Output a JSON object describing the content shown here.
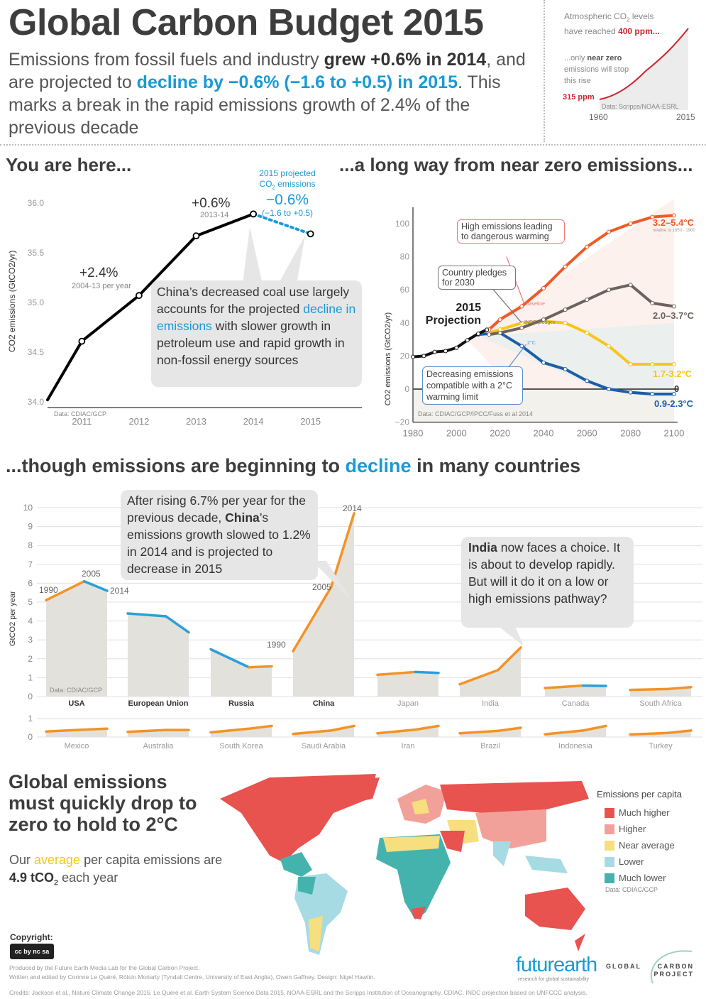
{
  "header": {
    "title": "Global Carbon Budget 2015",
    "sub_pre": "Emissions from fossil fuels and industry ",
    "sub_grew": "grew +0.6% in 2014",
    "sub_mid": ", and are projected to ",
    "sub_decline": "decline by −0.6% (−1.6 to +0.5) in 2015",
    "sub_post": ". This marks a break in the rapid emissions growth of 2.4% of the previous decade"
  },
  "inset": {
    "line1_pre": "Atmospheric CO",
    "line1_sub": "2",
    "line1_post": " levels",
    "line2_pre": "have reached ",
    "line2_val": "400 ppm...",
    "note_pre": "...only ",
    "note_bold": "near zero",
    "note_post": " emissions will stop this rise",
    "start_label": "315 ppm",
    "source": "Data: Scripps/NOAA-ESRL",
    "x_start": "1960",
    "x_end": "2015"
  },
  "sections": {
    "here": "You are here...",
    "long_way": "...a long way from near zero emissions...",
    "though_pre": "...though emissions are beginning to ",
    "though_decline": "decline",
    "though_post": " in many countries",
    "drop": "Global emissions must quickly drop to zero to hold to 2°C"
  },
  "chart1_notes": {
    "growth_2014": "+0.6%",
    "growth_2014_sub": "2013-14",
    "growth_decade": "+2.4%",
    "growth_decade_sub": "2004-13 per year",
    "proj_title_1": "2015 projected",
    "proj_title_2_pre": "CO",
    "proj_title_2_sub": "2",
    "proj_title_2_post": " emissions",
    "proj_value": "−0.6%",
    "proj_range": "(−1.6 to +0.5)",
    "callout_1": "China’s decreased coal use largely accounts for the projected ",
    "callout_blue": "decline in emissions",
    "callout_2": " with slower growth in petroleum use and rapid growth in non-fossil energy sources",
    "source": "Data: CDIAC/GCP"
  },
  "chart2_notes": {
    "high": "High emissions leading to dangerous warming",
    "pledges": "Country pledges for 2030",
    "projection": "2015 Projection",
    "decreasing": "Decreasing emissions compatible with a 2°C warming limit",
    "baseline": "Baseline",
    "indc": "INDC pledges",
    "two_c": "2°C",
    "t_red": "3.2–5.4°C",
    "t_red_sub": "relative to 1850 - 1900",
    "t_grey": "2.0–3.7°C",
    "t_yellow": "1.7-3.2°C",
    "t_zero": "0",
    "t_blue": "0.9-2.3°C",
    "source": "Data: CDIAC/GCP/IPCC/Fuss et al 2014"
  },
  "chart3_notes": {
    "china_1": "After rising 6.7% per year for the previous decade, ",
    "china_b": "China",
    "china_2": "’s emissions growth slowed to 1.2% in 2014 and is projected to decrease in 2015",
    "india_b": "India",
    "india_2": " now faces a choice. It is about to develop rapidly. But will it do it on a low or high emissions pathway?",
    "lbl_1990": "1990",
    "lbl_2005": "2005",
    "lbl_2014": "2014",
    "source": "Data: CDIAC/GCP"
  },
  "map": {
    "avg_pre": "Our ",
    "avg_word": "average",
    "avg_mid": " per capita emissions are ",
    "avg_val": "4.9 tCO",
    "avg_sub": "2",
    "avg_post": " each year",
    "legend_title": "Emissions per capita",
    "legend": [
      {
        "label": "Much higher",
        "color": "#e8524f"
      },
      {
        "label": "Higher",
        "color": "#f2a19a"
      },
      {
        "label": "Near average",
        "color": "#f7de7e"
      },
      {
        "label": "Lower",
        "color": "#a6dbe3"
      },
      {
        "label": "Much lower",
        "color": "#45b3ad"
      }
    ],
    "source": "Data: CDIAC/GCP"
  },
  "footer": {
    "copyright": "Copyright:",
    "cc": "cc by nc sa",
    "produced": "Produced by the Future Earth Media Lab for the Global Carbon Project.",
    "written": "Written and edited by Corinne Le Quéré, Róisín Moriarty (Tyndall Centre, University of East Anglia), Owen Gaffney. Design: Nigel Hawtin.",
    "credits": "Credits: Jackson et al., Nature Climate Change 2015, Le Quéré et al. Earth System Science Data 2015, NOAA-ESRL and the Scripps Institution of Oceanography, CDIAC. INDC projection based on UNFCCC analysis.",
    "futurearth": "futurearth",
    "futurearth_sub": "research for global sustainability",
    "gcp_1": "GLOBAL",
    "gcp_2": "CARBON",
    "gcp_3": "PROJECT"
  },
  "chart_data": [
    {
      "type": "line",
      "id": "global-emissions",
      "ylabel": "CO2 emissions (GtCO2/yr)",
      "xlim": [
        2010.4,
        2015.6
      ],
      "ylim": [
        34.0,
        36.0
      ],
      "xticks": [
        2011,
        2012,
        2013,
        2014,
        2015
      ],
      "yticks": [
        "34.0",
        "34.5",
        "35.0",
        "35.5",
        "36.0"
      ],
      "series": [
        {
          "name": "observed",
          "x": [
            2010.4,
            2011,
            2012,
            2013,
            2014
          ],
          "y": [
            34.02,
            34.61,
            35.07,
            35.67,
            35.89
          ],
          "color": "#000000"
        },
        {
          "name": "projected",
          "x": [
            2014,
            2015
          ],
          "y": [
            35.89,
            35.69
          ],
          "color": "#1a9ad6"
        }
      ]
    },
    {
      "type": "line",
      "id": "scenarios",
      "ylabel": "CO2 emissions (GtCO2/yr)",
      "xlim": [
        1980,
        2100
      ],
      "ylim": [
        -20,
        110
      ],
      "xticks": [
        1980,
        2000,
        2020,
        2040,
        2060,
        2080,
        2100
      ],
      "yticks": [
        "-20",
        "0",
        "20",
        "40",
        "60",
        "80",
        "100"
      ],
      "series": [
        {
          "name": "historical",
          "color": "#111111",
          "x": [
            1980,
            1985,
            1990,
            1995,
            2000,
            2005,
            2010,
            2014
          ],
          "y": [
            19.5,
            20,
            22.5,
            23,
            25,
            29.5,
            33.5,
            35.9
          ]
        },
        {
          "name": "high emissions",
          "color": "#ef5a28",
          "x": [
            2015,
            2020,
            2030,
            2040,
            2050,
            2060,
            2070,
            2080,
            2090,
            2100
          ],
          "y": [
            36,
            42,
            50,
            61,
            74,
            86,
            95,
            100,
            104,
            105
          ]
        },
        {
          "name": "medium-high",
          "color": "#6d625c",
          "x": [
            2015,
            2020,
            2030,
            2040,
            2050,
            2060,
            2070,
            2080,
            2090,
            2100
          ],
          "y": [
            33,
            34,
            37,
            42,
            48,
            54,
            60,
            63,
            52,
            50
          ]
        },
        {
          "name": "INDC",
          "color": "#f7c51b",
          "x": [
            2015,
            2020,
            2030,
            2040,
            2050,
            2060,
            2070,
            2080,
            2090,
            2100
          ],
          "y": [
            34,
            36,
            40,
            41,
            40,
            34,
            26,
            15,
            15,
            15
          ]
        },
        {
          "name": "2C",
          "color": "#1c5ea8",
          "x": [
            2010,
            2020,
            2030,
            2040,
            2050,
            2060,
            2070,
            2080,
            2090,
            2100
          ],
          "y": [
            33,
            34,
            26,
            16,
            12,
            5,
            0,
            -2,
            -3,
            -3
          ]
        }
      ]
    },
    {
      "type": "area",
      "id": "countries",
      "ylabel": "GtCO2 per year",
      "x": [
        1990,
        2005,
        2014
      ],
      "yticks_top": [
        "0",
        "1",
        "2",
        "3",
        "4",
        "5",
        "6",
        "7",
        "8",
        "9",
        "10"
      ],
      "yticks_bottom": [
        "0",
        "1"
      ],
      "rising_color": "#f39325",
      "falling_color": "#2b9fd9",
      "top_row": [
        {
          "name": "USA",
          "values": [
            5.1,
            6.1,
            5.6
          ],
          "bold": true
        },
        {
          "name": "European Union",
          "values": [
            4.4,
            4.25,
            3.4
          ],
          "bold": true
        },
        {
          "name": "Russia",
          "values": [
            2.5,
            1.55,
            1.6
          ],
          "bold": true
        },
        {
          "name": "China",
          "values": [
            2.4,
            5.8,
            9.7
          ],
          "bold": true
        },
        {
          "name": "Japan",
          "values": [
            1.15,
            1.3,
            1.25
          ],
          "bold": false
        },
        {
          "name": "India",
          "values": [
            0.65,
            1.4,
            2.6
          ],
          "bold": false
        },
        {
          "name": "Canada",
          "values": [
            0.45,
            0.58,
            0.56
          ],
          "bold": false
        },
        {
          "name": "South Africa",
          "values": [
            0.35,
            0.4,
            0.5
          ],
          "bold": false
        }
      ],
      "bottom_row": [
        {
          "name": "Mexico",
          "values": [
            0.3,
            0.4,
            0.45
          ]
        },
        {
          "name": "Australia",
          "values": [
            0.28,
            0.38,
            0.38
          ]
        },
        {
          "name": "South Korea",
          "values": [
            0.25,
            0.45,
            0.6
          ]
        },
        {
          "name": "Saudi Arabia",
          "values": [
            0.17,
            0.35,
            0.6
          ]
        },
        {
          "name": "Iran",
          "values": [
            0.2,
            0.4,
            0.6
          ]
        },
        {
          "name": "Brazil",
          "values": [
            0.2,
            0.33,
            0.5
          ]
        },
        {
          "name": "Indonesia",
          "values": [
            0.15,
            0.35,
            0.6
          ]
        },
        {
          "name": "Turkey",
          "values": [
            0.14,
            0.22,
            0.35
          ]
        }
      ]
    }
  ]
}
